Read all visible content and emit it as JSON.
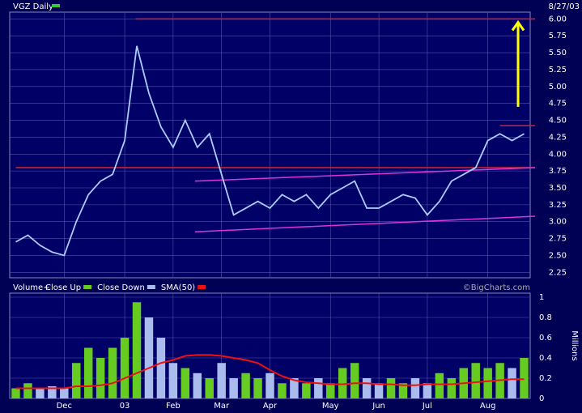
{
  "chart_data": [
    {
      "type": "line",
      "title": "VGZ Daily",
      "date": "8/27/03",
      "series": [
        {
          "name": "VGZ Daily",
          "color": "#aaccff",
          "legend_color": "#33cc33",
          "values": [
            2.7,
            2.8,
            2.65,
            2.55,
            2.5,
            3.0,
            3.4,
            3.6,
            3.7,
            4.2,
            5.6,
            4.9,
            4.4,
            4.1,
            4.5,
            4.1,
            4.3,
            3.7,
            3.1,
            3.2,
            3.3,
            3.2,
            3.4,
            3.3,
            3.4,
            3.2,
            3.4,
            3.5,
            3.6,
            3.2,
            3.2,
            3.3,
            3.4,
            3.35,
            3.1,
            3.3,
            3.6,
            3.7,
            3.8,
            4.2,
            4.3,
            4.2,
            4.3
          ]
        }
      ],
      "ylim": [
        2.17,
        6.1
      ],
      "yticks": [
        {
          "value": 2.25,
          "label": "2.25"
        },
        {
          "value": 2.5,
          "label": "2.50"
        },
        {
          "value": 2.75,
          "label": "2.75"
        },
        {
          "value": 3,
          "label": "3.00"
        },
        {
          "value": 3.25,
          "label": "3.25"
        },
        {
          "value": 3.5,
          "label": "3.50"
        },
        {
          "value": 3.75,
          "label": "3.75"
        },
        {
          "value": 4,
          "label": "4.00"
        },
        {
          "value": 4.25,
          "label": "4.25"
        },
        {
          "value": 4.5,
          "label": "4.50"
        },
        {
          "value": 4.75,
          "label": "4.75"
        },
        {
          "value": 5,
          "label": "5.00"
        },
        {
          "value": 5.25,
          "label": "5.25"
        },
        {
          "value": 5.5,
          "label": "5.50"
        },
        {
          "value": 5.75,
          "label": "5.75"
        },
        {
          "value": 6,
          "label": "6.00"
        }
      ],
      "grid": true,
      "trendlines": [
        {
          "color": "#dd2222",
          "x": [
            9.9,
            42.9
          ],
          "values": [
            6.0,
            6.0
          ]
        },
        {
          "color": "#dd2222",
          "x": [
            0,
            42.9
          ],
          "values": [
            3.8,
            3.8
          ]
        },
        {
          "color": "#dd33dd",
          "x": [
            14.8,
            42.9
          ],
          "values": [
            3.6,
            3.8
          ]
        },
        {
          "color": "#dd33dd",
          "x": [
            14.8,
            42.9
          ],
          "values": [
            2.85,
            3.08
          ]
        },
        {
          "color": "#dd2222",
          "x": [
            40,
            42.9
          ],
          "values": [
            4.42,
            4.42
          ]
        }
      ],
      "arrows": [
        {
          "color": "#ffff00",
          "x": 41.5,
          "values": [
            4.7,
            5.95
          ]
        }
      ]
    },
    {
      "type": "bar",
      "title": "Volume+",
      "credit": "©BigCharts.com",
      "y_label": "Millions",
      "categories": [
        null,
        null,
        null,
        null,
        "Dec",
        null,
        null,
        null,
        null,
        "03",
        null,
        null,
        null,
        "Feb",
        null,
        null,
        null,
        "Mar",
        null,
        null,
        null,
        "Apr",
        null,
        null,
        null,
        null,
        "May",
        null,
        null,
        null,
        "Jun",
        null,
        null,
        null,
        "Jul",
        null,
        null,
        null,
        null,
        "Aug",
        null,
        null,
        null
      ],
      "series": [
        {
          "name": "Close Up",
          "color": "#66cc22",
          "values": [
            0.1,
            0.15,
            null,
            null,
            null,
            0.35,
            0.5,
            0.4,
            0.5,
            0.6,
            0.95,
            null,
            null,
            null,
            0.3,
            null,
            0.2,
            null,
            null,
            0.25,
            0.2,
            null,
            0.15,
            null,
            0.15,
            null,
            0.15,
            0.3,
            0.35,
            null,
            null,
            0.2,
            0.15,
            null,
            null,
            0.25,
            0.2,
            0.3,
            0.35,
            0.3,
            0.35,
            null,
            0.4
          ]
        },
        {
          "name": "Close Down",
          "color": "#aabbee",
          "values": [
            null,
            null,
            0.1,
            0.12,
            0.1,
            null,
            null,
            null,
            null,
            null,
            null,
            0.8,
            0.6,
            0.35,
            null,
            0.25,
            null,
            0.35,
            0.2,
            null,
            null,
            0.25,
            null,
            0.2,
            null,
            0.2,
            null,
            null,
            null,
            0.2,
            0.15,
            null,
            null,
            0.2,
            0.15,
            null,
            null,
            null,
            null,
            null,
            null,
            0.3,
            null
          ]
        },
        {
          "name": "SMA(50)",
          "color": "#ee1111",
          "line": true,
          "values": [
            0.1,
            0.1,
            0.1,
            0.1,
            0.1,
            0.12,
            0.12,
            0.13,
            0.15,
            0.2,
            0.25,
            0.3,
            0.35,
            0.38,
            0.42,
            0.43,
            0.43,
            0.42,
            0.4,
            0.38,
            0.35,
            0.28,
            0.22,
            0.18,
            0.16,
            0.15,
            0.14,
            0.14,
            0.15,
            0.15,
            0.14,
            0.14,
            0.13,
            0.13,
            0.14,
            0.14,
            0.14,
            0.15,
            0.16,
            0.17,
            0.18,
            0.19,
            0.19
          ]
        }
      ],
      "ylim": [
        0,
        1.04
      ],
      "yticks": [
        0,
        0.2,
        0.4,
        0.6,
        0.8,
        1
      ],
      "grid": true
    }
  ]
}
